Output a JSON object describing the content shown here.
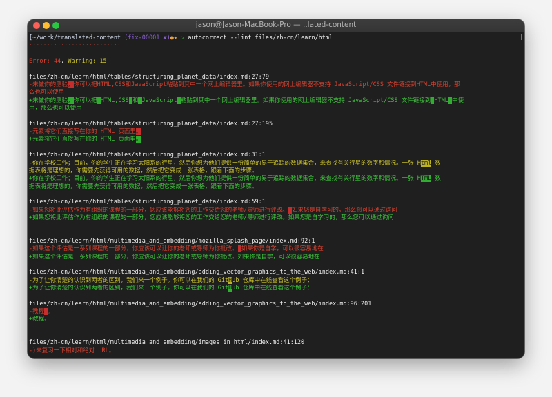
{
  "window": {
    "title": "jason@Jason-MacBook-Pro — ..lated-content"
  },
  "colors": {
    "red": "#d8412f",
    "green": "#3ec43c",
    "yellow": "#c9c12b",
    "background": "#1f1f1f"
  },
  "lines": [
    [
      [
        "[~/work/translated-content ",
        "blue"
      ],
      [
        "(fix-00001 ",
        "purple"
      ],
      [
        "✘)",
        "purple"
      ],
      [
        "●★",
        "orange"
      ],
      [
        " ▷ ",
        "green"
      ],
      [
        "autocorrect --lint files/zh-cn/learn/html",
        "white"
      ]
    ],
    [
      [
        "··························",
        "dim"
      ]
    ],
    [],
    [
      [
        "Error: 44",
        "red"
      ],
      [
        ", ",
        "white"
      ],
      [
        "Warning: 15",
        "yellow"
      ]
    ],
    [],
    [
      [
        "files/zh-cn/learn/html/tables/structuring_planet_data/index.md:27:79",
        "white"
      ]
    ],
    [
      [
        "-来做你的测验",
        "red"
      ],
      [
        "，",
        "hl-red"
      ],
      [
        "你可以把HTML,CSS和JavaScript粘贴到其中一个网上编辑器里。如果你使用的网上编辑器不支持 JavaScript/CSS 文件链接到HTML中使用，那",
        "red"
      ]
    ],
    [
      [
        "么也可以使用",
        "red"
      ]
    ],
    [
      [
        "+来做你的测验",
        "green"
      ],
      [
        "，",
        "hl-green"
      ],
      [
        "你可以把",
        "green"
      ],
      [
        " ",
        "hl-green"
      ],
      [
        "HTML,CSS",
        "green"
      ],
      [
        " ",
        "hl-green"
      ],
      [
        "和",
        "green"
      ],
      [
        " ",
        "hl-green"
      ],
      [
        "JavaScript",
        "green"
      ],
      [
        " ",
        "hl-green"
      ],
      [
        "粘贴到其中一个网上编辑器里。如果你使用的网上编辑器不支持 JavaScript/CSS 文件链接到",
        "green"
      ],
      [
        " ",
        "hl-green"
      ],
      [
        "HTML",
        "green"
      ],
      [
        " ",
        "hl-green"
      ],
      [
        "中使",
        "green"
      ]
    ],
    [
      [
        "用，那么也可以使用",
        "green"
      ]
    ],
    [],
    [
      [
        "files/zh-cn/learn/html/tables/structuring_planet_data/index.md:27:195",
        "white"
      ]
    ],
    [
      [
        "-元素将它们直接写在你的 HTML 页面里",
        "red"
      ],
      [
        "。",
        "hl-red"
      ]
    ],
    [
      [
        "+元素将它们直接写在你的 HTML 页面里",
        "green"
      ],
      [
        "。",
        "hl-green"
      ]
    ],
    [],
    [
      [
        "files/zh-cn/learn/html/tables/structuring_planet_data/index.md:31:1",
        "white"
      ]
    ],
    [
      [
        "-你在学校工作；目前，你的学生正在学习太阳系的行星，然后你想为他们提供一份简单的易于追踪的数据集合，来查找有关行星的数字和情况。一张 H",
        "yellow"
      ],
      [
        "tml",
        "hl-yellow"
      ],
      [
        " 数",
        "yellow"
      ]
    ],
    [
      [
        "据表将是理想的，你需要先获得可用的数据，然后把它变成一张表格，跟着下面的步骤。",
        "yellow"
      ]
    ],
    [
      [
        "+你在学校工作；目前，你的学生正在学习太阳系的行星，然后你想为他们提供一份简单的易于追踪的数据集合，来查找有关行星的数字和情况。一张 H",
        "green"
      ],
      [
        "TML",
        "hl-green"
      ],
      [
        " 数",
        "green"
      ]
    ],
    [
      [
        "据表将是理想的，你需要先获得可用的数据，然后把它变成一张表格，跟着下面的步骤。",
        "green"
      ]
    ],
    [],
    [
      [
        "files/zh-cn/learn/html/tables/structuring_planet_data/index.md:59:1",
        "white"
      ]
    ],
    [
      [
        "-如果您将此评估作为有组织的课程的一部分，您应该能够将您的工作交给您的老师/导师进行评改。",
        "red"
      ],
      [
        " ",
        "hl-red"
      ],
      [
        "如果您是自学习的，那么您可以通过询问",
        "red"
      ]
    ],
    [
      [
        "+如果您将此评估作为有组织的课程的一部分，您应该能够将您的工作交给您的老师/导师进行评改。如果您是自学习的，那么您可以通过询问",
        "green"
      ]
    ],
    [],
    [],
    [
      [
        "files/zh-cn/learn/html/multimedia_and_embedding/mozilla_splash_page/index.md:92:1",
        "white"
      ]
    ],
    [
      [
        "-如果这个评估是一系列课程的一部分，你应该可以让你的老师或导师为你批改。",
        "red"
      ],
      [
        " ",
        "hl-red"
      ],
      [
        "如果你是自学，可以很容易地在",
        "red"
      ]
    ],
    [
      [
        "+如果这个评估是一系列课程的一部分，你应该可以让你的老师或导师为你批改。如果你是自学，可以很容易地在",
        "green"
      ]
    ],
    [],
    [
      [
        "files/zh-cn/learn/html/multimedia_and_embedding/adding_vector_graphics_to_the_web/index.md:41:1",
        "white"
      ]
    ],
    [
      [
        "-为了让你清楚的认识到两者的区别，我们来一个例子。你可以在我们的 Git",
        "yellow"
      ],
      [
        "H",
        "hl-yellow"
      ],
      [
        "ub 仓库中在线查看这个例子：",
        "yellow"
      ]
    ],
    [
      [
        "+为了让你清楚的认识到两者的区别，我们来一个例子。你可以在我们的 Git",
        "green"
      ],
      [
        "H",
        "hl-green"
      ],
      [
        "ub 仓库中在线查看这个例子：",
        "green"
      ]
    ],
    [],
    [
      [
        "files/zh-cn/learn/html/multimedia_and_embedding/adding_vector_graphics_to_the_web/index.md:96:201",
        "white"
      ]
    ],
    [
      [
        "-教程",
        "red"
      ],
      [
        " ",
        "hl-red"
      ],
      [
        "。",
        "red"
      ]
    ],
    [
      [
        "+教程。",
        "green"
      ]
    ],
    [],
    [],
    [
      [
        "files/zh-cn/learn/html/multimedia_and_embedding/images_in_html/index.md:41:120",
        "white"
      ]
    ],
    [
      [
        "-)来复习一下相对和绝对 URL。",
        "red"
      ]
    ]
  ]
}
